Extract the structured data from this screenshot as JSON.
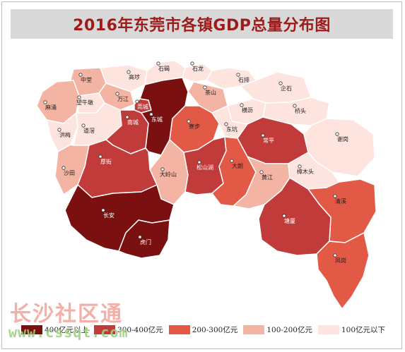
{
  "title": "2016年东莞市各镇GDP总量分布图",
  "colors": {
    "c400plus": "#7a1010",
    "c300_400": "#c13b3b",
    "c200_300": "#e25a45",
    "c100_200": "#f3b4a4",
    "c_below100": "#fde4de",
    "border": "#ffffff",
    "title_text": "#9e1b1b"
  },
  "legend": [
    {
      "key": "c400plus",
      "label": "400亿元以上"
    },
    {
      "key": "c300_400",
      "label": "300-400亿元"
    },
    {
      "key": "c200_300",
      "label": "200-300亿元"
    },
    {
      "key": "c100_200",
      "label": "100-200亿元"
    },
    {
      "key": "c_below100",
      "label": "100亿元以下"
    }
  ],
  "towns": [
    {
      "name": "中堂",
      "category": "c100_200"
    },
    {
      "name": "高埗",
      "category": "c_below100"
    },
    {
      "name": "石碣",
      "category": "c_below100"
    },
    {
      "name": "石龙",
      "category": "c_below100"
    },
    {
      "name": "石排",
      "category": "c_below100"
    },
    {
      "name": "麻涌",
      "category": "c100_200"
    },
    {
      "name": "望牛墩",
      "category": "c_below100"
    },
    {
      "name": "万江",
      "category": "c100_200"
    },
    {
      "name": "莞城",
      "category": "c300_400"
    },
    {
      "name": "茶山",
      "category": "c100_200"
    },
    {
      "name": "企石",
      "category": "c_below100"
    },
    {
      "name": "洪梅",
      "category": "c_below100"
    },
    {
      "name": "道滘",
      "category": "c_below100"
    },
    {
      "name": "南城",
      "category": "c300_400"
    },
    {
      "name": "东城",
      "category": "c400plus"
    },
    {
      "name": "寮步",
      "category": "c200_300"
    },
    {
      "name": "横沥",
      "category": "c_below100"
    },
    {
      "name": "桥头",
      "category": "c_below100"
    },
    {
      "name": "东坑",
      "category": "c_below100"
    },
    {
      "name": "常平",
      "category": "c300_400"
    },
    {
      "name": "谢岗",
      "category": "c_below100"
    },
    {
      "name": "沙田",
      "category": "c100_200"
    },
    {
      "name": "厚街",
      "category": "c300_400"
    },
    {
      "name": "大岭山",
      "category": "c100_200"
    },
    {
      "name": "松山湖",
      "category": "c300_400"
    },
    {
      "name": "大朗",
      "category": "c200_300"
    },
    {
      "name": "黄江",
      "category": "c100_200"
    },
    {
      "name": "樟木头",
      "category": "c_below100"
    },
    {
      "name": "长安",
      "category": "c400plus"
    },
    {
      "name": "虎门",
      "category": "c400plus"
    },
    {
      "name": "清溪",
      "category": "c200_300"
    },
    {
      "name": "塘厦",
      "category": "c300_400"
    },
    {
      "name": "凤岗",
      "category": "c200_300"
    }
  ],
  "watermark": {
    "text": "长沙社区通",
    "url": "www.cssqt.com"
  }
}
